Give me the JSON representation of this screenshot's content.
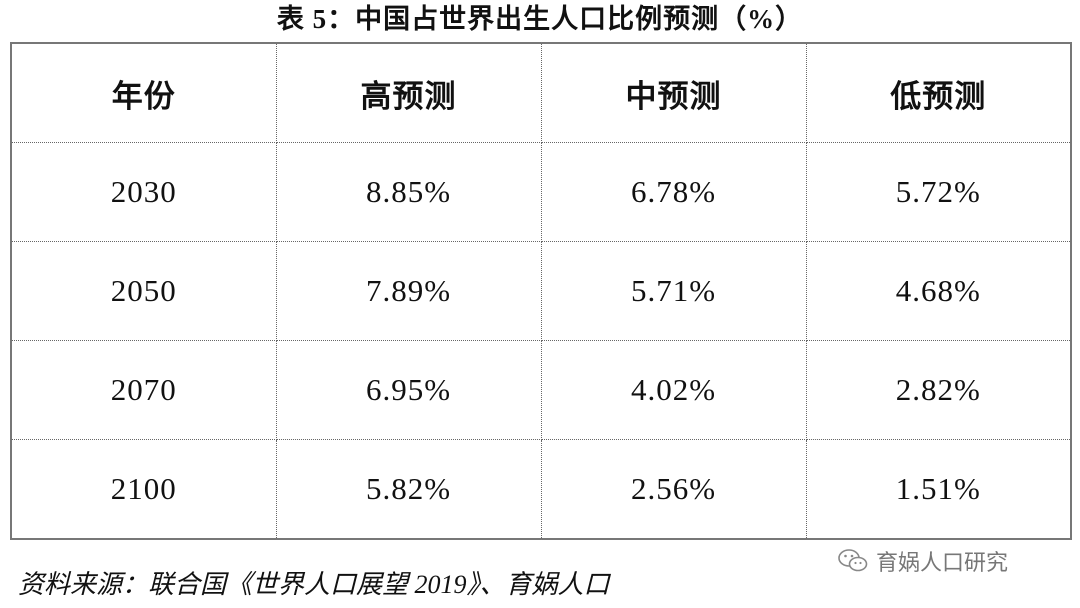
{
  "title": "表 5：中国占世界出生人口比例预测（%）",
  "table": {
    "header": [
      "年份",
      "高预测",
      "中预测",
      "低预测"
    ],
    "rows": [
      [
        "2030",
        "8.85%",
        "6.78%",
        "5.72%"
      ],
      [
        "2050",
        "7.89%",
        "5.71%",
        "4.68%"
      ],
      [
        "2070",
        "6.95%",
        "4.02%",
        "2.82%"
      ],
      [
        "2100",
        "5.82%",
        "2.56%",
        "1.51%"
      ]
    ]
  },
  "source": "资料来源：联合国《世界人口展望 2019》、育娲人口",
  "watermark": "育娲人口研究"
}
